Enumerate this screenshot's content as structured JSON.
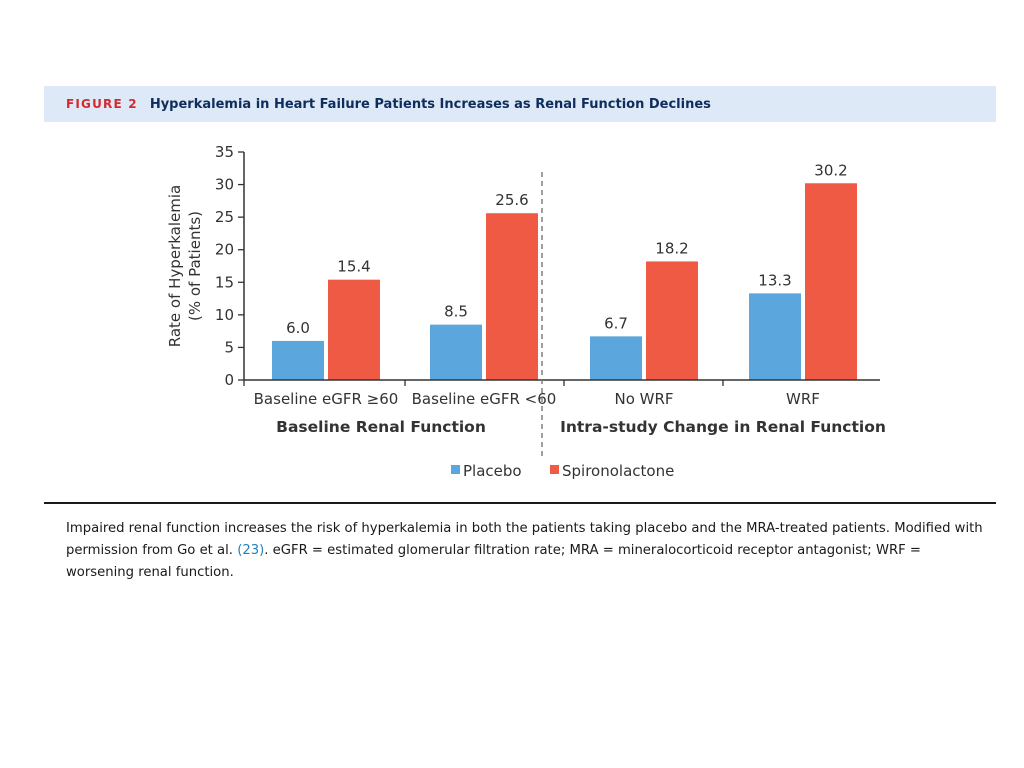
{
  "figure": {
    "label": "FIGURE 2",
    "title": "Hyperkalemia in Heart Failure Patients Increases as Renal Function Declines"
  },
  "chart_data": {
    "type": "bar",
    "categories": [
      "Baseline eGFR ≥60",
      "Baseline eGFR <60",
      "No WRF",
      "WRF"
    ],
    "groups": [
      {
        "label": "Baseline Renal Function",
        "categories": [
          0,
          1
        ]
      },
      {
        "label": "Intra-study Change in Renal Function",
        "categories": [
          2,
          3
        ]
      }
    ],
    "series": [
      {
        "name": "Placebo",
        "values": [
          6.0,
          8.5,
          6.7,
          13.3
        ],
        "color": "#5ba6dc"
      },
      {
        "name": "Spironolactone",
        "values": [
          15.4,
          25.6,
          18.2,
          30.2
        ],
        "color": "#ef5a45"
      }
    ],
    "value_labels": {
      "Placebo": [
        "6.0",
        "8.5",
        "6.7",
        "13.3"
      ],
      "Spironolactone": [
        "15.4",
        "25.6",
        "18.2",
        "30.2"
      ]
    },
    "ylabel_lines": [
      "Rate of Hyperkalemia",
      "(% of Patients)"
    ],
    "xlabel": "",
    "ylim": [
      0,
      35
    ],
    "yticks": [
      0,
      5,
      10,
      15,
      20,
      25,
      30,
      35
    ],
    "divider": "dashed",
    "legend_position": "bottom-center",
    "grid": false
  },
  "caption": {
    "text_before": "Impaired renal function increases the risk of hyperkalemia in both the patients taking placebo and the MRA-treated patients. Modified with permission from Go et al. ",
    "ref": "(23)",
    "text_after": ". eGFR = estimated glomerular filtration rate; MRA = mineralocorticoid receptor antagonist; WRF = worsening renal function."
  }
}
